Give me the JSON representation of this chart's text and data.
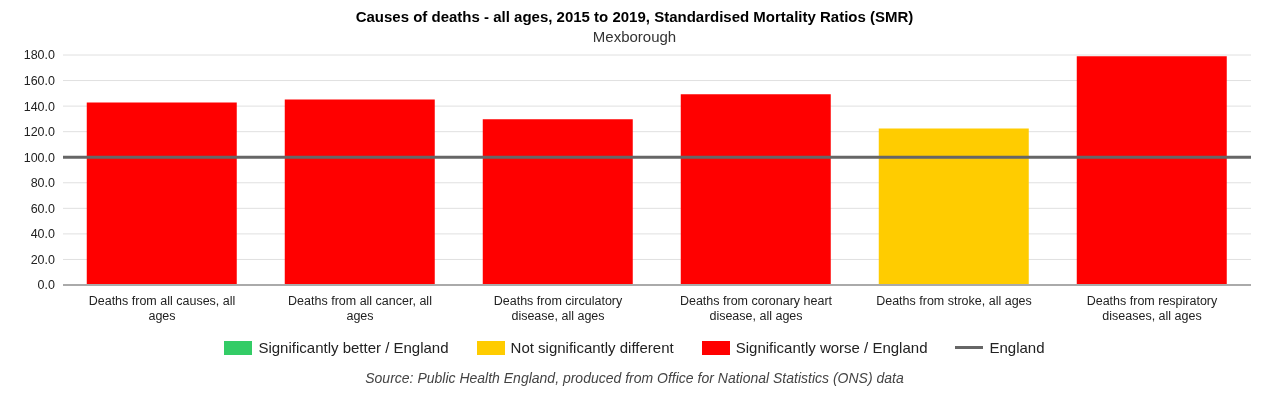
{
  "chart_data": {
    "type": "bar",
    "title": "Causes of deaths - all ages, 2015 to 2019, Standardised Mortality Ratios (SMR)",
    "subtitle": "Mexborough",
    "categories": [
      "Deaths from all causes, all ages",
      "Deaths from all cancer, all ages",
      "Deaths from circulatory disease, all ages",
      "Deaths from coronary heart disease, all ages",
      "Deaths from stroke, all ages",
      "Deaths from respiratory diseases, all ages"
    ],
    "stacked": true,
    "series": [
      {
        "name": "Significantly better / England",
        "color": "#33cc66",
        "values": [
          null,
          null,
          null,
          null,
          null,
          null
        ]
      },
      {
        "name": "Not significantly different",
        "color": "#ffcc00",
        "values": [
          null,
          null,
          null,
          null,
          122.4,
          null
        ]
      },
      {
        "name": "Significantly worse / England",
        "color": "#ff0000",
        "values": [
          142.9,
          145.2,
          129.8,
          149.2,
          null,
          179
        ]
      }
    ],
    "ylim": [
      0,
      180
    ],
    "yticks": [
      {
        "value": 0,
        "label": "0.0"
      },
      {
        "value": 20,
        "label": "20.0"
      },
      {
        "value": 40,
        "label": "40.0"
      },
      {
        "value": 60,
        "label": "60.0"
      },
      {
        "value": 80,
        "label": "80.0"
      },
      {
        "value": 100,
        "label": "100.0"
      },
      {
        "value": 120,
        "label": "120.0"
      },
      {
        "value": 140,
        "label": "140.0"
      },
      {
        "value": 160,
        "label": "160.0"
      },
      {
        "value": 180,
        "label": "180.0"
      }
    ],
    "grid": "y",
    "legend": "bottom",
    "ref_lines": [
      {
        "axis": "y",
        "value": 100,
        "label": "England",
        "color": "#666666"
      }
    ],
    "annotations": [
      "Source: Public Health England, produced from Office for National Statistics (ONS) data"
    ]
  }
}
